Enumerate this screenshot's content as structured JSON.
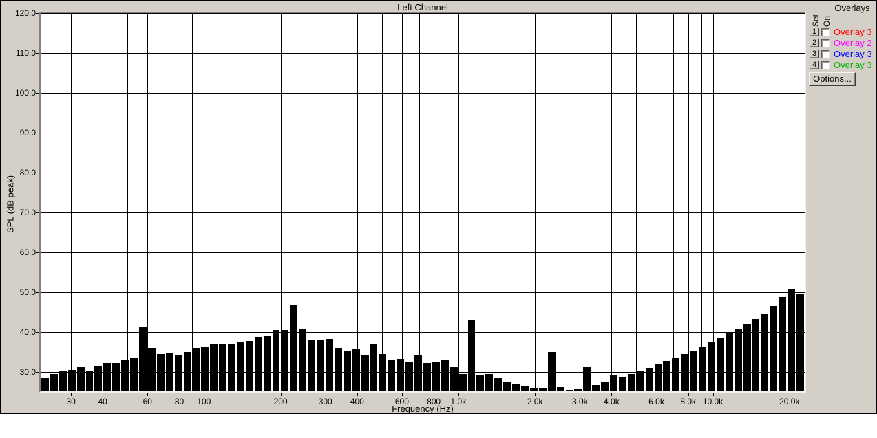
{
  "window": {
    "background_color": "#d4d0c8",
    "plot_background": "#ffffff",
    "grid_color": "#000000"
  },
  "chart_data": {
    "type": "bar",
    "title": "Left Channel",
    "xlabel": "Frequency (Hz)",
    "ylabel": "SPL (dB peak)",
    "x_scale": "log",
    "freq_min": 22.8,
    "freq_max": 22970,
    "ylim": [
      25.1,
      120.0
    ],
    "bar_color": "#000000",
    "y_gridlines": [
      120,
      110,
      100,
      90,
      80,
      70,
      60,
      50,
      40,
      30
    ],
    "y_tick_labels": [
      "120.0",
      "110.0",
      "100.0",
      "90.0",
      "80.0",
      "70.0",
      "60.0",
      "50.0",
      "40.0",
      "30.0"
    ],
    "x_gridline_freqs": [
      30,
      40,
      50,
      60,
      70,
      80,
      90,
      100,
      200,
      300,
      400,
      500,
      600,
      700,
      800,
      900,
      1000,
      2000,
      3000,
      4000,
      5000,
      6000,
      7000,
      8000,
      9000,
      10000,
      20000
    ],
    "x_ticks": [
      {
        "f": 30,
        "label": "30"
      },
      {
        "f": 40,
        "label": "40"
      },
      {
        "f": 60,
        "label": "60"
      },
      {
        "f": 80,
        "label": "80"
      },
      {
        "f": 100,
        "label": "100"
      },
      {
        "f": 200,
        "label": "200"
      },
      {
        "f": 300,
        "label": "300"
      },
      {
        "f": 400,
        "label": "400"
      },
      {
        "f": 600,
        "label": "600"
      },
      {
        "f": 800,
        "label": "800"
      },
      {
        "f": 1000,
        "label": "1.0k"
      },
      {
        "f": 2000,
        "label": "2.0k"
      },
      {
        "f": 3000,
        "label": "3.0k"
      },
      {
        "f": 4000,
        "label": "4.0k"
      },
      {
        "f": 6000,
        "label": "6.0k"
      },
      {
        "f": 8000,
        "label": "8.0k"
      },
      {
        "f": 10000,
        "label": "10.0k"
      },
      {
        "f": 20000,
        "label": "20.0k"
      }
    ],
    "values": [
      28.4,
      29.4,
      30.1,
      30.4,
      31.1,
      30.1,
      31.4,
      32.1,
      32.2,
      33.1,
      33.4,
      41.1,
      35.9,
      34.4,
      34.6,
      34.3,
      35.0,
      35.9,
      36.4,
      36.9,
      36.9,
      36.8,
      37.5,
      37.7,
      38.7,
      39.1,
      40.4,
      40.4,
      46.8,
      40.7,
      37.9,
      37.9,
      38.3,
      35.9,
      35.1,
      35.8,
      34.3,
      36.9,
      34.5,
      33.0,
      33.2,
      32.6,
      34.2,
      32.1,
      32.3,
      33.0,
      31.2,
      29.5,
      43.1,
      29.2,
      29.4,
      28.4,
      27.4,
      26.8,
      26.5,
      25.8,
      26.0,
      34.9,
      26.2,
      25.4,
      25.6,
      31.1,
      26.6,
      27.3,
      29.1,
      28.6,
      29.5,
      30.2,
      31.0,
      31.8,
      32.7,
      33.6,
      34.4,
      35.3,
      36.3,
      37.4,
      38.5,
      39.6,
      40.7,
      42.1,
      43.3,
      44.6,
      46.5,
      48.7,
      50.7,
      49.5
    ]
  },
  "overlays_panel": {
    "title": "Overlays",
    "col_set": "Set",
    "col_on": "On",
    "rows": [
      {
        "button": "1",
        "label": "Overlay 3",
        "color": "#ff0000",
        "checked": false
      },
      {
        "button": "2",
        "label": "Overlay 2",
        "color": "#ff00ff",
        "checked": false
      },
      {
        "button": "3",
        "label": "Overlay 3",
        "color": "#0000ff",
        "checked": false
      },
      {
        "button": "4",
        "label": "Overlay 3",
        "color": "#00b000",
        "checked": false
      }
    ],
    "options_button": "Options..."
  }
}
